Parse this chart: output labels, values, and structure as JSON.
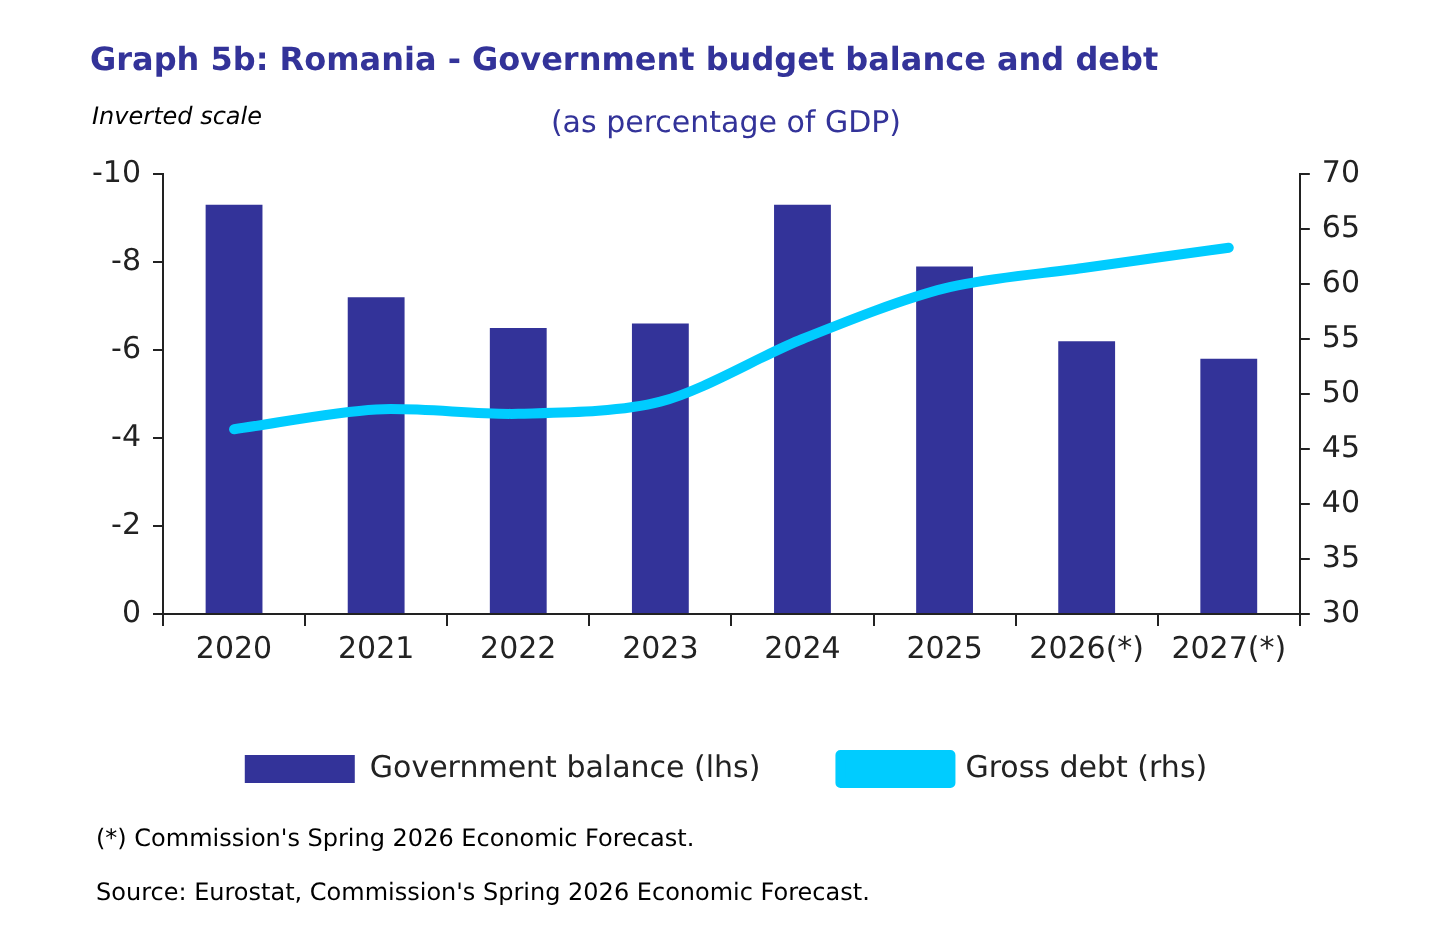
{
  "chart_data": {
    "type": "bar",
    "title": "Graph 5b: Romania - Government budget balance and debt",
    "subtitle": "(as percentage of GDP)",
    "categories": [
      "2020",
      "2021",
      "2022",
      "2023",
      "2024",
      "2025",
      "2026(*)",
      "2027(*)"
    ],
    "series": [
      {
        "name": "Government balance (lhs)",
        "type": "bar",
        "color": "#333399",
        "values": [
          -9.3,
          -7.2,
          -6.5,
          -6.6,
          -9.3,
          -7.9,
          -6.2,
          -5.8
        ]
      },
      {
        "name": "Gross debt (rhs)",
        "type": "line",
        "axis": "y2",
        "color": "#00ccff",
        "values": [
          46.8,
          48.6,
          48.2,
          49.3,
          55.0,
          59.6,
          61.5,
          63.3
        ]
      }
    ],
    "ylim": [
      0,
      -10
    ],
    "yticks": [
      0,
      -2,
      -4,
      -6,
      -8,
      -10
    ],
    "y2lim": [
      30,
      70
    ],
    "y2ticks": [
      30,
      35,
      40,
      45,
      50,
      55,
      60,
      65,
      70
    ],
    "legend": "bottom",
    "grid": false,
    "marker": "none",
    "annotations": [
      "Inverted scale",
      "(*) Commission's Spring 2026 Economic Forecast.",
      "Source: Eurostat, Commission's Spring 2026 Economic Forecast."
    ]
  }
}
